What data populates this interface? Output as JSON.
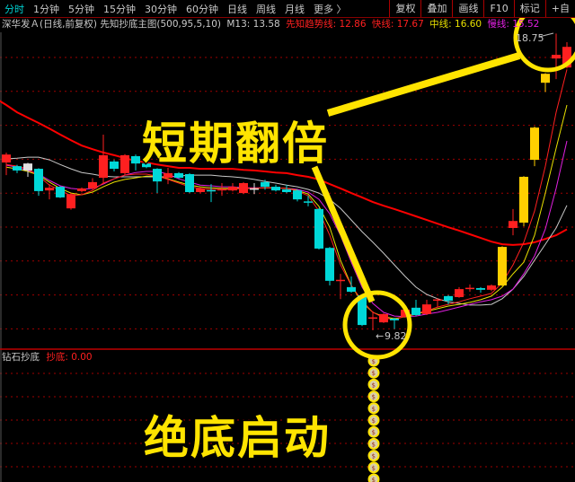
{
  "toolbar": {
    "tabs": [
      "分时",
      "1分钟",
      "5分钟",
      "15分钟",
      "30分钟",
      "60分钟",
      "日线",
      "周线",
      "月线",
      "更多 〉"
    ],
    "active_tab": "分时",
    "right_buttons": [
      "复权",
      "叠加",
      "画线",
      "F10",
      "标记",
      "+自"
    ]
  },
  "info": {
    "title": "深华发Ａ(日线,前复权) 先知抄底主图(500,95,5,10)",
    "m13_label": "M13: 13.58",
    "trend_label": "先知趋势线: 12.86",
    "fast_label": "快线: 17.67",
    "mid_label": "中线: 16.60",
    "slow_label": "慢线: 15.52"
  },
  "lower": {
    "indicator_name": "钻石抄底",
    "signal_label": "抄底: 0.00"
  },
  "annotations": {
    "top_text": "短期翻倍",
    "bottom_text": "绝底启动",
    "high_label": "18.75",
    "low_label": "9.82"
  },
  "colors": {
    "up": "#ff2020",
    "down": "#00d8d8",
    "limit_up": "#ffd000",
    "doji": "#e0e0e0",
    "trend": "#ff0000",
    "fast": "#ff2020",
    "mid": "#e8e000",
    "slow": "#e020e0",
    "m13": "#c8c8c8",
    "annotation": "#ffe400",
    "grid": "#a00000"
  },
  "chart_data": {
    "type": "candlestick",
    "ylim": [
      9.28,
      19.22
    ],
    "grid": true,
    "candles": [
      {
        "o": 14.87,
        "h": 15.17,
        "l": 14.49,
        "c": 15.11,
        "k": "up"
      },
      {
        "o": 14.76,
        "h": 14.8,
        "l": 14.55,
        "c": 14.63,
        "k": "down"
      },
      {
        "o": 14.63,
        "h": 14.86,
        "l": 14.44,
        "c": 14.84,
        "k": "doji"
      },
      {
        "o": 14.68,
        "h": 14.7,
        "l": 13.87,
        "c": 14.01,
        "k": "down"
      },
      {
        "o": 14.03,
        "h": 14.22,
        "l": 13.76,
        "c": 14.11,
        "k": "up"
      },
      {
        "o": 14.14,
        "h": 14.16,
        "l": 13.8,
        "c": 13.82,
        "k": "down"
      },
      {
        "o": 13.49,
        "h": 13.95,
        "l": 13.45,
        "c": 13.92,
        "k": "up"
      },
      {
        "o": 14.01,
        "h": 14.12,
        "l": 13.98,
        "c": 14.09,
        "k": "up"
      },
      {
        "o": 14.09,
        "h": 14.4,
        "l": 14.05,
        "c": 14.28,
        "k": "up"
      },
      {
        "o": 14.41,
        "h": 15.71,
        "l": 14.22,
        "c": 15.09,
        "k": "up"
      },
      {
        "o": 14.9,
        "h": 14.95,
        "l": 14.6,
        "c": 14.68,
        "k": "down"
      },
      {
        "o": 14.55,
        "h": 15.12,
        "l": 14.5,
        "c": 15.09,
        "k": "up"
      },
      {
        "o": 15.06,
        "h": 15.11,
        "l": 14.63,
        "c": 14.84,
        "k": "down"
      },
      {
        "o": 14.84,
        "h": 14.88,
        "l": 14.7,
        "c": 14.73,
        "k": "down"
      },
      {
        "o": 14.68,
        "h": 14.7,
        "l": 13.95,
        "c": 14.3,
        "k": "down"
      },
      {
        "o": 14.41,
        "h": 14.71,
        "l": 14.22,
        "c": 14.55,
        "k": "up"
      },
      {
        "o": 14.55,
        "h": 14.58,
        "l": 14.38,
        "c": 14.41,
        "k": "down"
      },
      {
        "o": 14.52,
        "h": 14.55,
        "l": 13.95,
        "c": 13.98,
        "k": "down"
      },
      {
        "o": 13.98,
        "h": 14.12,
        "l": 13.95,
        "c": 14.09,
        "k": "up"
      },
      {
        "o": 14.04,
        "h": 14.22,
        "l": 13.68,
        "c": 14.02,
        "k": "down"
      },
      {
        "o": 14.05,
        "h": 14.25,
        "l": 13.87,
        "c": 14.07,
        "k": "up"
      },
      {
        "o": 14.03,
        "h": 14.25,
        "l": 14.0,
        "c": 14.14,
        "k": "up"
      },
      {
        "o": 13.95,
        "h": 14.28,
        "l": 13.92,
        "c": 14.25,
        "k": "up"
      },
      {
        "o": 14.09,
        "h": 14.25,
        "l": 13.92,
        "c": 14.09,
        "k": "doji"
      },
      {
        "o": 14.28,
        "h": 14.35,
        "l": 14.05,
        "c": 14.14,
        "k": "down"
      },
      {
        "o": 14.14,
        "h": 14.2,
        "l": 14.0,
        "c": 14.03,
        "k": "down"
      },
      {
        "o": 14.06,
        "h": 14.2,
        "l": 13.95,
        "c": 13.98,
        "k": "down"
      },
      {
        "o": 14.03,
        "h": 14.06,
        "l": 13.7,
        "c": 13.76,
        "k": "down"
      },
      {
        "o": 13.7,
        "h": 13.87,
        "l": 13.55,
        "c": 13.66,
        "k": "down"
      },
      {
        "o": 13.47,
        "h": 13.5,
        "l": 12.25,
        "c": 12.28,
        "k": "down"
      },
      {
        "o": 12.3,
        "h": 12.33,
        "l": 11.17,
        "c": 11.31,
        "k": "down"
      },
      {
        "o": 11.32,
        "h": 11.52,
        "l": 10.76,
        "c": 11.34,
        "k": "up"
      },
      {
        "o": 11.12,
        "h": 11.44,
        "l": 10.95,
        "c": 10.98,
        "k": "down"
      },
      {
        "o": 10.87,
        "h": 10.9,
        "l": 9.95,
        "c": 9.98,
        "k": "down"
      },
      {
        "o": 10.19,
        "h": 10.39,
        "l": 9.82,
        "c": 10.21,
        "k": "up"
      },
      {
        "o": 10.06,
        "h": 10.33,
        "l": 10.04,
        "c": 10.31,
        "k": "up"
      },
      {
        "o": 10.17,
        "h": 10.2,
        "l": 9.86,
        "c": 10.12,
        "k": "down"
      },
      {
        "o": 10.23,
        "h": 10.46,
        "l": 10.2,
        "c": 10.44,
        "k": "up"
      },
      {
        "o": 10.5,
        "h": 10.74,
        "l": 10.25,
        "c": 10.28,
        "k": "down"
      },
      {
        "o": 10.31,
        "h": 10.74,
        "l": 10.28,
        "c": 10.6,
        "k": "up"
      },
      {
        "o": 10.73,
        "h": 10.79,
        "l": 10.52,
        "c": 10.75,
        "k": "up"
      },
      {
        "o": 10.85,
        "h": 10.88,
        "l": 10.6,
        "c": 10.71,
        "k": "down"
      },
      {
        "o": 10.82,
        "h": 11.12,
        "l": 10.8,
        "c": 11.06,
        "k": "up"
      },
      {
        "o": 11.08,
        "h": 11.2,
        "l": 10.98,
        "c": 11.1,
        "k": "up"
      },
      {
        "o": 11.09,
        "h": 11.12,
        "l": 10.95,
        "c": 11.04,
        "k": "down"
      },
      {
        "o": 11.04,
        "h": 11.2,
        "l": 11.0,
        "c": 11.17,
        "k": "up"
      },
      {
        "o": 11.17,
        "h": 12.35,
        "l": 11.15,
        "c": 12.33,
        "k": "limit_up"
      },
      {
        "o": 12.9,
        "h": 13.47,
        "l": 12.68,
        "c": 13.11,
        "k": "up"
      },
      {
        "o": 13.06,
        "h": 14.46,
        "l": 12.95,
        "c": 14.44,
        "k": "limit_up"
      },
      {
        "o": 14.95,
        "h": 15.95,
        "l": 14.76,
        "c": 15.92,
        "k": "limit_up"
      },
      {
        "o": 17.27,
        "h": 17.56,
        "l": 16.99,
        "c": 17.54,
        "k": "limit_up"
      },
      {
        "o": 18.0,
        "h": 18.75,
        "l": 17.38,
        "c": 18.11,
        "k": "up"
      },
      {
        "o": 17.73,
        "h": 18.49,
        "l": 17.7,
        "c": 18.35,
        "k": "up"
      }
    ],
    "series": [
      {
        "name": "先知趋势线",
        "color_key": "trend",
        "values": [
          16.6,
          16.38,
          16.22,
          16.06,
          15.89,
          15.71,
          15.54,
          15.38,
          15.27,
          15.17,
          15.09,
          15.0,
          14.92,
          14.87,
          14.81,
          14.76,
          14.71,
          14.71,
          14.68,
          14.68,
          14.68,
          14.68,
          14.65,
          14.63,
          14.6,
          14.57,
          14.55,
          14.49,
          14.44,
          14.36,
          14.22,
          14.09,
          13.95,
          13.82,
          13.68,
          13.57,
          13.47,
          13.36,
          13.25,
          13.14,
          13.03,
          12.92,
          12.82,
          12.71,
          12.6,
          12.49,
          12.41,
          12.39,
          12.41,
          12.47,
          12.57,
          12.68,
          12.86
        ]
      },
      {
        "name": "M13",
        "color_key": "m13",
        "values": [
          14.98,
          15.0,
          15.03,
          15.03,
          14.95,
          14.81,
          14.68,
          14.57,
          14.52,
          14.46,
          14.44,
          14.44,
          14.44,
          14.44,
          14.44,
          14.44,
          14.46,
          14.49,
          14.49,
          14.49,
          14.46,
          14.44,
          14.41,
          14.36,
          14.3,
          14.25,
          14.19,
          14.14,
          14.06,
          13.95,
          13.76,
          13.49,
          13.14,
          12.79,
          12.47,
          12.14,
          11.79,
          11.44,
          11.12,
          10.9,
          10.77,
          10.68,
          10.63,
          10.58,
          10.58,
          10.6,
          10.77,
          11.06,
          11.44,
          11.93,
          12.41,
          12.9,
          13.58
        ]
      },
      {
        "name": "慢线",
        "color_key": "slow",
        "values": [
          14.79,
          14.73,
          14.63,
          14.52,
          14.33,
          14.17,
          14.09,
          14.06,
          14.09,
          14.22,
          14.38,
          14.49,
          14.57,
          14.6,
          14.6,
          14.52,
          14.38,
          14.28,
          14.19,
          14.17,
          14.14,
          14.14,
          14.11,
          14.11,
          14.11,
          14.11,
          14.09,
          14.06,
          13.98,
          13.76,
          13.33,
          12.68,
          11.87,
          11.12,
          10.63,
          10.36,
          10.25,
          10.23,
          10.25,
          10.31,
          10.36,
          10.44,
          10.52,
          10.6,
          10.68,
          10.74,
          10.85,
          11.06,
          11.52,
          12.06,
          12.87,
          14.09,
          15.52
        ]
      },
      {
        "name": "中线",
        "color_key": "mid",
        "values": [
          14.73,
          14.68,
          14.6,
          14.49,
          14.28,
          14.09,
          13.95,
          13.9,
          13.98,
          14.14,
          14.28,
          14.36,
          14.41,
          14.46,
          14.46,
          14.38,
          14.28,
          14.19,
          14.14,
          14.11,
          14.09,
          14.09,
          14.09,
          14.09,
          14.11,
          14.11,
          14.09,
          14.03,
          13.92,
          13.55,
          12.92,
          11.93,
          11.17,
          10.66,
          10.36,
          10.23,
          10.17,
          10.23,
          10.31,
          10.39,
          10.47,
          10.55,
          10.6,
          10.66,
          10.74,
          10.85,
          11.12,
          11.52,
          11.87,
          12.68,
          13.95,
          15.3,
          16.6
        ]
      },
      {
        "name": "快线",
        "color_key": "fast",
        "values": [
          14.81,
          14.76,
          14.68,
          14.46,
          14.19,
          14.03,
          13.87,
          13.9,
          14.03,
          14.25,
          14.38,
          14.49,
          14.52,
          14.52,
          14.46,
          14.36,
          14.25,
          14.14,
          14.09,
          14.06,
          14.06,
          14.06,
          14.09,
          14.09,
          14.11,
          14.11,
          14.09,
          14.01,
          13.87,
          13.41,
          12.68,
          11.79,
          11.17,
          10.71,
          10.36,
          10.2,
          10.14,
          10.25,
          10.33,
          10.41,
          10.52,
          10.6,
          10.68,
          10.77,
          10.85,
          10.93,
          11.25,
          11.79,
          12.47,
          13.41,
          14.76,
          16.38,
          17.67
        ]
      }
    ],
    "lower_pane_signal_candle_index": 34
  }
}
